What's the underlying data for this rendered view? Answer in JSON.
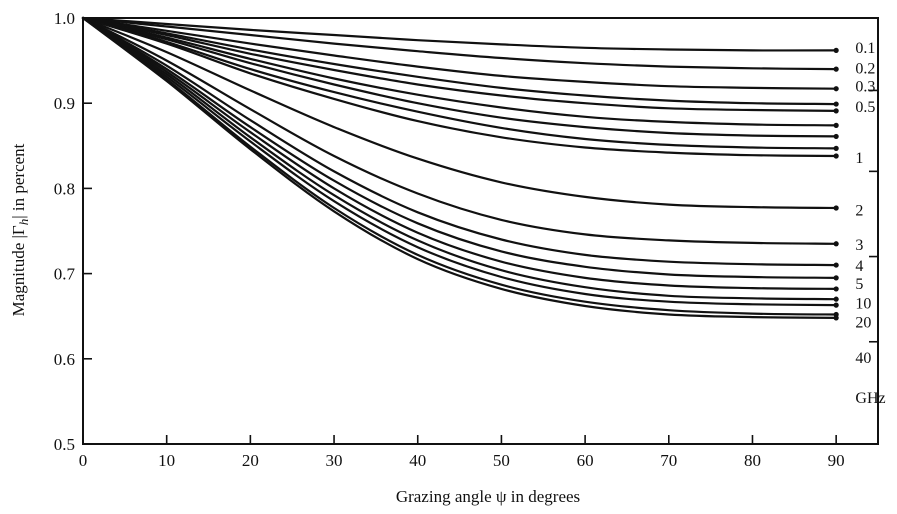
{
  "chart_data": {
    "type": "line",
    "title": "",
    "xlabel": "Grazing angle ψ in degrees",
    "ylabel_parts": {
      "prefix": "Magnitude |Γ",
      "sub": "h",
      "suffix": "| in percent"
    },
    "xlim": [
      0,
      95
    ],
    "ylim": [
      0.5,
      1.0
    ],
    "xticks": [
      "0",
      "10",
      "20",
      "30",
      "40",
      "50",
      "60",
      "70",
      "80",
      "90"
    ],
    "yticks": [
      "0.5",
      "0.6",
      "0.7",
      "0.8",
      "0.9",
      "1.0"
    ],
    "right_ticks": [
      0.915,
      0.82,
      0.72,
      0.62
    ],
    "x": [
      0,
      10,
      20,
      30,
      40,
      50,
      60,
      70,
      80,
      90
    ],
    "series": [
      {
        "values": [
          1.0,
          0.993,
          0.986,
          0.98,
          0.974,
          0.969,
          0.965,
          0.963,
          0.962,
          0.962
        ]
      },
      {
        "values": [
          1.0,
          0.99,
          0.98,
          0.97,
          0.961,
          0.953,
          0.947,
          0.943,
          0.941,
          0.94
        ]
      },
      {
        "values": [
          1.0,
          0.985,
          0.97,
          0.956,
          0.943,
          0.932,
          0.925,
          0.92,
          0.918,
          0.917
        ]
      },
      {
        "values": [
          1.0,
          0.982,
          0.963,
          0.946,
          0.931,
          0.918,
          0.909,
          0.903,
          0.9,
          0.899
        ]
      },
      {
        "values": [
          1.0,
          0.98,
          0.958,
          0.939,
          0.922,
          0.909,
          0.9,
          0.894,
          0.892,
          0.891
        ]
      },
      {
        "values": [
          1.0,
          0.977,
          0.952,
          0.929,
          0.91,
          0.895,
          0.884,
          0.878,
          0.875,
          0.874
        ]
      },
      {
        "values": [
          1.0,
          0.975,
          0.947,
          0.922,
          0.9,
          0.883,
          0.872,
          0.865,
          0.862,
          0.861
        ]
      },
      {
        "values": [
          1.0,
          0.972,
          0.94,
          0.913,
          0.89,
          0.871,
          0.858,
          0.851,
          0.848,
          0.847
        ]
      },
      {
        "values": [
          1.0,
          0.97,
          0.935,
          0.905,
          0.879,
          0.86,
          0.848,
          0.842,
          0.839,
          0.838
        ]
      },
      {
        "values": [
          1.0,
          0.96,
          0.915,
          0.872,
          0.835,
          0.807,
          0.79,
          0.781,
          0.778,
          0.777
        ]
      },
      {
        "values": [
          1.0,
          0.95,
          0.893,
          0.838,
          0.794,
          0.763,
          0.746,
          0.739,
          0.736,
          0.735
        ]
      },
      {
        "values": [
          1.0,
          0.944,
          0.88,
          0.82,
          0.772,
          0.74,
          0.722,
          0.714,
          0.711,
          0.71
        ]
      },
      {
        "values": [
          1.0,
          0.94,
          0.872,
          0.809,
          0.759,
          0.726,
          0.708,
          0.699,
          0.696,
          0.695
        ]
      },
      {
        "values": [
          1.0,
          0.937,
          0.866,
          0.8,
          0.748,
          0.714,
          0.695,
          0.686,
          0.683,
          0.682
        ]
      },
      {
        "values": [
          1.0,
          0.934,
          0.86,
          0.792,
          0.739,
          0.704,
          0.684,
          0.674,
          0.671,
          0.67
        ]
      },
      {
        "values": [
          1.0,
          0.931,
          0.855,
          0.785,
          0.731,
          0.696,
          0.676,
          0.667,
          0.664,
          0.663
        ]
      },
      {
        "values": [
          1.0,
          0.928,
          0.849,
          0.777,
          0.722,
          0.687,
          0.667,
          0.657,
          0.653,
          0.652
        ]
      },
      {
        "values": [
          1.0,
          0.926,
          0.846,
          0.773,
          0.717,
          0.682,
          0.662,
          0.652,
          0.649,
          0.648
        ]
      }
    ],
    "curve_labels": [
      {
        "text": "0.1",
        "y": 0.966
      },
      {
        "text": "0.2",
        "y": 0.942
      },
      {
        "text": "0.3",
        "y": 0.921
      },
      {
        "text": "0.5",
        "y": 0.897
      },
      {
        "text": "1",
        "y": 0.837
      },
      {
        "text": "2",
        "y": 0.775
      },
      {
        "text": "3",
        "y": 0.735
      },
      {
        "text": "4",
        "y": 0.71
      },
      {
        "text": "5",
        "y": 0.689
      },
      {
        "text": "10",
        "y": 0.666
      },
      {
        "text": "20",
        "y": 0.644
      },
      {
        "text": "40",
        "y": 0.602
      },
      {
        "text": "GHz",
        "y": 0.555
      }
    ]
  }
}
